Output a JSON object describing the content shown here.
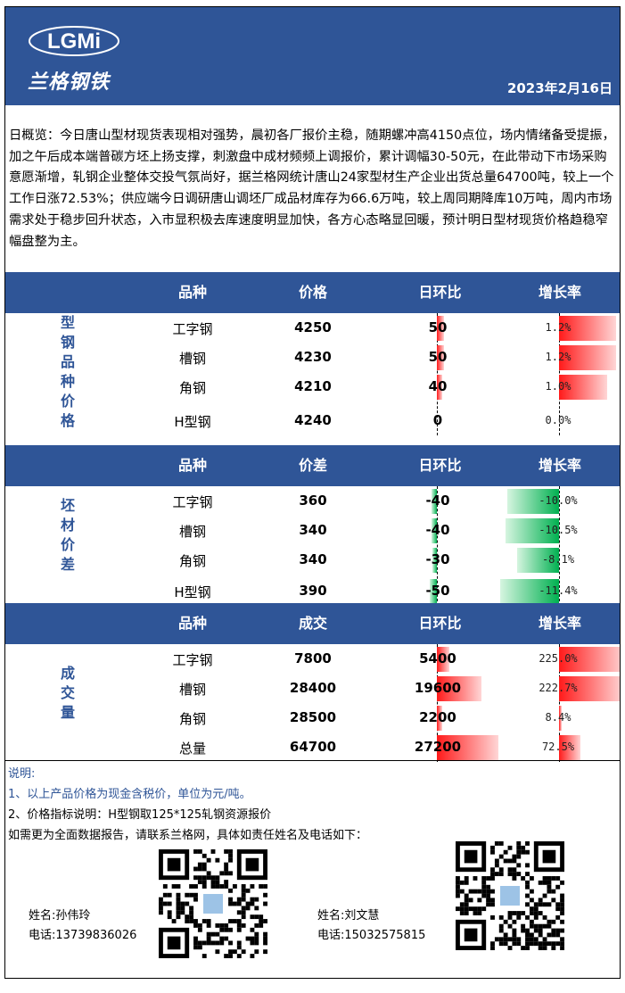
{
  "header": {
    "logo_text": "LGMi",
    "logo_cn": "兰格钢铁",
    "date": "2023年2月16日"
  },
  "overview": "日概览：今日唐山型材现货表现相对强势，晨初各厂报价主稳，随期螺冲高4150点位，场内情绪备受提振，加之午后成本端普碳方坯上扬支撑，刺激盘中成材频频上调报价，累计调幅30-50元，在此带动下市场采购意愿渐增，轧钢企业整体交投气氛尚好，据兰格网统计唐山24家型材生产企业出货总量64700吨，较上一个工作日涨72.53%；供应端今日调研唐山调坯厂成品材库存为66.6万吨，较上周同期降库10万吨，周内市场需求处于稳步回升状态，入市显积极去库速度明显加快，各方心态略显回暖，预计明日型材现货价格趋稳窄幅盘整为主。",
  "sections": [
    {
      "label": "型钢品种价格",
      "headers": [
        "品种",
        "价格",
        "日环比",
        "增长率"
      ],
      "rows": [
        {
          "name": "工字钢",
          "value": "4250",
          "change": "50",
          "rate": "1.2%",
          "change_level": 0.1,
          "rate_level": 0.48
        },
        {
          "name": "槽钢",
          "value": "4230",
          "change": "50",
          "rate": "1.2%",
          "change_level": 0.1,
          "rate_level": 0.48
        },
        {
          "name": "角钢",
          "value": "4210",
          "change": "40",
          "rate": "1.0%",
          "change_level": 0.08,
          "rate_level": 0.4
        },
        {
          "name": "H型钢",
          "value": "4240",
          "change": "0",
          "rate": "0.0%",
          "change_level": 0,
          "rate_level": 0
        }
      ]
    },
    {
      "label": "坯材价差",
      "headers": [
        "品种",
        "价差",
        "日环比",
        "增长率"
      ],
      "rows": [
        {
          "name": "工字钢",
          "value": "360",
          "change": "-40",
          "rate": "-10.0%",
          "change_level": -0.08,
          "rate_level": -0.43
        },
        {
          "name": "槽钢",
          "value": "340",
          "change": "-40",
          "rate": "-10.5%",
          "change_level": -0.08,
          "rate_level": -0.45
        },
        {
          "name": "角钢",
          "value": "340",
          "change": "-30",
          "rate": "-8.1%",
          "change_level": -0.06,
          "rate_level": -0.35
        },
        {
          "name": "H型钢",
          "value": "390",
          "change": "-50",
          "rate": "-11.4%",
          "change_level": -0.1,
          "rate_level": -0.49
        }
      ]
    },
    {
      "label": "成交量",
      "headers": [
        "品种",
        "成交",
        "日环比",
        "增长率"
      ],
      "rows": [
        {
          "name": "工字钢",
          "value": "7800",
          "change": "5400",
          "rate": "225.0%",
          "change_level": 0.17,
          "rate_level": 0.55
        },
        {
          "name": "槽钢",
          "value": "28400",
          "change": "19600",
          "rate": "222.7%",
          "change_level": 0.62,
          "rate_level": 0.54
        },
        {
          "name": "角钢",
          "value": "28500",
          "change": "2200",
          "rate": "8.4%",
          "change_level": 0.07,
          "rate_level": 0.02
        },
        {
          "name": "总量",
          "value": "64700",
          "change": "27200",
          "rate": "72.5%",
          "change_level": 0.86,
          "rate_level": 0.18
        }
      ]
    }
  ],
  "notes": {
    "title": "说明:",
    "line1": "1、以上产品价格为现金含税价，单位为元/吨。",
    "line2": "2、价格指标说明：H型钢取125*125轧钢资源报价",
    "line3": "如需更为全面数据报告，请联系兰格网，具体如责任姓名及电话如下："
  },
  "contacts": [
    {
      "name": "姓名:孙伟玲",
      "phone": "电话:13739836026"
    },
    {
      "name": "姓名:刘文慧",
      "phone": "电话:15032575815"
    }
  ],
  "colors": {
    "header_blue": "#2f5597",
    "up_red": "#ff1a1a",
    "down_green": "#00b050"
  }
}
